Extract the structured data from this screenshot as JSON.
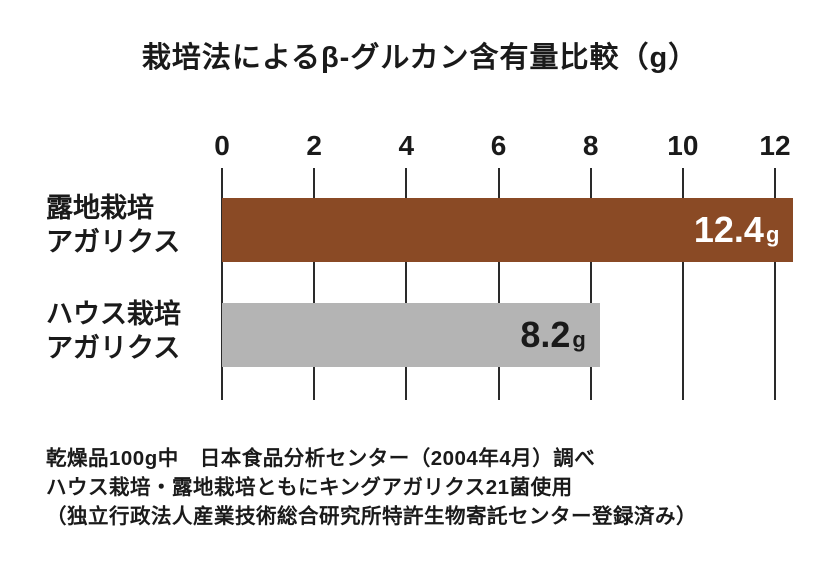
{
  "chart_data": {
    "type": "bar",
    "orientation": "horizontal",
    "title": "栽培法によるβ-グルカン含有量比較（g）",
    "unit": "g",
    "categories": [
      "露地栽培\nアガリクス",
      "ハウス栽培\nアガリクス"
    ],
    "values": [
      12.4,
      8.2
    ],
    "value_labels": [
      "12.4",
      "8.2"
    ],
    "bar_colors": [
      "#8a4a25",
      "#b4b4b4"
    ],
    "value_label_colors": [
      "#ffffff",
      "#1a1a1a"
    ],
    "x_ticks": [
      0,
      2,
      4,
      6,
      8,
      10,
      12
    ],
    "xlim": [
      0,
      12
    ],
    "grid": true,
    "axis_position": "top",
    "legend": "none"
  },
  "footer": {
    "lines": [
      "乾燥品100g中　日本食品分析センター（2004年4月）調べ",
      "ハウス栽培・露地栽培ともにキングアガリクス21菌使用",
      "（独立行政法人産業技術総合研究所特許生物寄託センター登録済み）"
    ]
  }
}
